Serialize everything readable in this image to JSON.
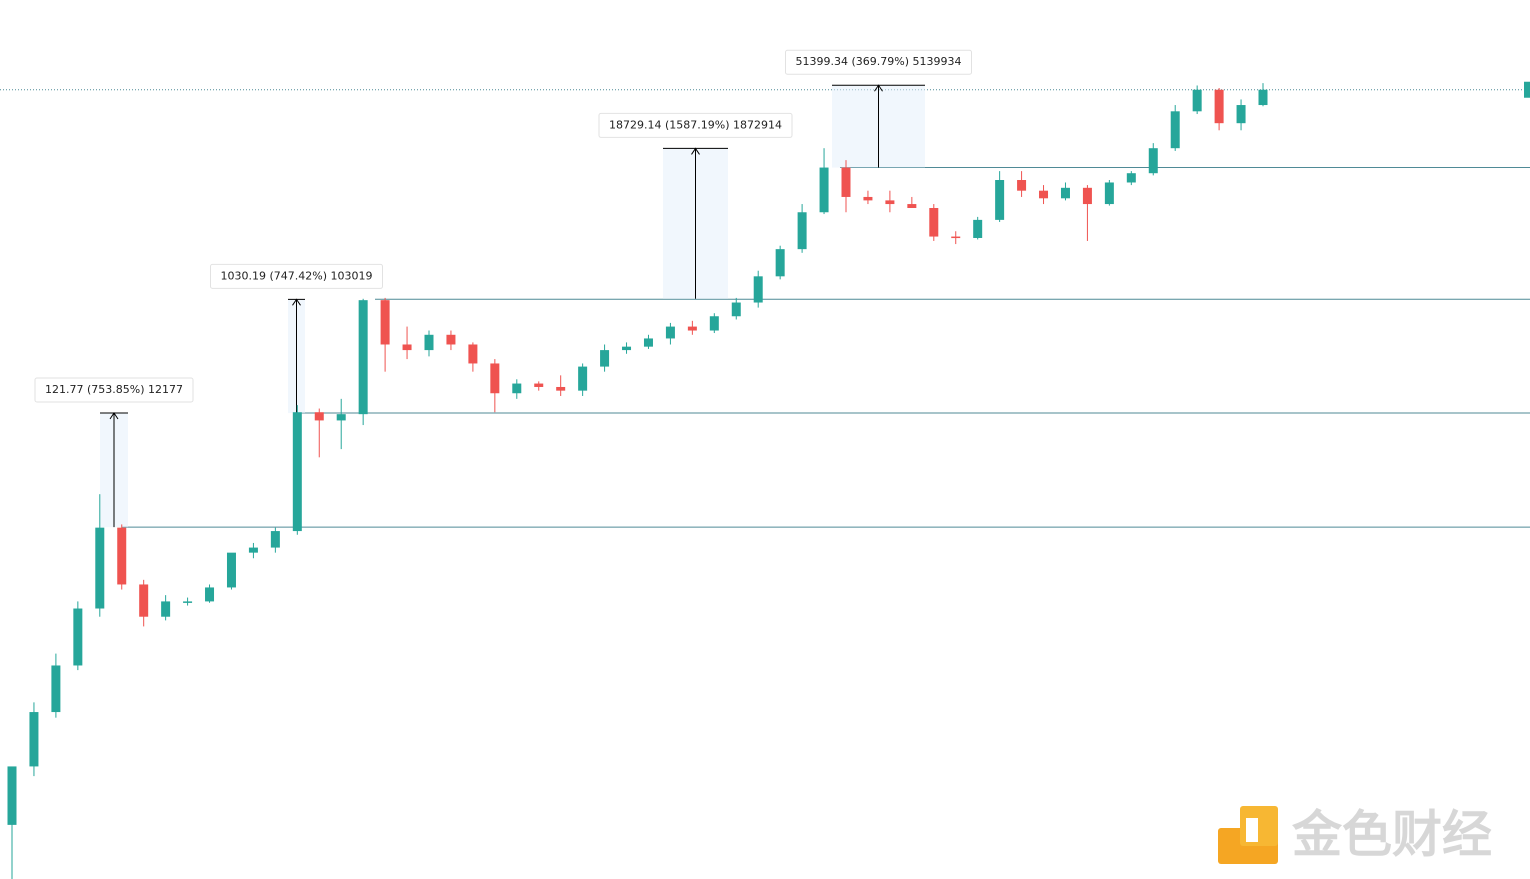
{
  "chart_data": {
    "type": "candlestick",
    "log": true,
    "ylim": [
      0.0217,
      324000
    ],
    "up_color": "#26a69a",
    "down_color": "#ef5350",
    "level_color": "#4f8a96",
    "open": [
      0.06,
      0.18,
      0.5,
      1.2,
      3.5,
      16,
      5.5,
      3,
      4,
      4,
      5.2,
      10,
      11,
      15,
      140,
      120,
      135,
      1150,
      500,
      450,
      600,
      500,
      350,
      200,
      240,
      225,
      210,
      330,
      450,
      480,
      560,
      700,
      650,
      850,
      1100,
      1800,
      3000,
      6000,
      13900,
      8000,
      7500,
      7000,
      6500,
      3800,
      3700,
      5200,
      11000,
      9000,
      7800,
      9500,
      7000,
      10500,
      12500,
      20000,
      40000,
      60000,
      32000,
      45000
    ],
    "high": [
      0.07,
      0.6,
      1.5,
      4,
      30,
      17,
      6,
      4.5,
      4.3,
      5.5,
      9,
      12,
      16,
      160,
      150,
      180,
      1180,
      1200,
      700,
      650,
      650,
      520,
      380,
      260,
      250,
      280,
      350,
      500,
      520,
      600,
      750,
      780,
      900,
      1200,
      2000,
      3200,
      7000,
      20000,
      16000,
      9000,
      9000,
      8000,
      7000,
      4200,
      5500,
      13000,
      13000,
      10000,
      10500,
      10000,
      11000,
      13000,
      22000,
      45000,
      65000,
      62000,
      50000,
      68000
    ],
    "low": [
      0.02,
      0.15,
      0.45,
      1.1,
      3,
      5,
      2.5,
      2.8,
      3.7,
      3.9,
      5,
      9,
      10,
      14,
      60,
      70,
      110,
      300,
      380,
      400,
      450,
      300,
      140,
      180,
      210,
      190,
      190,
      300,
      420,
      460,
      500,
      600,
      620,
      800,
      1000,
      1700,
      2800,
      5800,
      6000,
      7000,
      6000,
      6500,
      3500,
      3300,
      3600,
      5000,
      8000,
      7000,
      7500,
      3500,
      6800,
      10000,
      12000,
      19000,
      38000,
      28000,
      28000,
      44000
    ],
    "close": [
      0.18,
      0.5,
      1.2,
      3.5,
      16,
      5.5,
      3,
      4,
      4,
      5.2,
      10,
      11,
      15,
      140,
      120,
      135,
      1150,
      500,
      450,
      600,
      500,
      350,
      200,
      240,
      225,
      210,
      330,
      450,
      480,
      560,
      700,
      650,
      850,
      1100,
      1800,
      3000,
      6000,
      13900,
      8000,
      7500,
      7000,
      6500,
      3800,
      3700,
      5200,
      11000,
      9000,
      7800,
      9500,
      7000,
      10500,
      12500,
      20000,
      40000,
      60000,
      32000,
      45000,
      60000
    ],
    "levels": [
      16.15,
      137.9,
      1170,
      13900
    ],
    "annotations": [
      {
        "from": 16.15,
        "to": 137.92,
        "label": "121.77 (753.85%) 12177"
      },
      {
        "from": 137.82,
        "to": 1168.01,
        "label": "1030.19 (747.42%) 103019"
      },
      {
        "from": 1180.03,
        "to": 19909.17,
        "label": "18729.14 (1587.19%) 1872914"
      },
      {
        "from": 13899.7,
        "to": 65299.04,
        "label": "51399.34 (369.79%) 5139934"
      }
    ],
    "watermark": "金色财经"
  }
}
